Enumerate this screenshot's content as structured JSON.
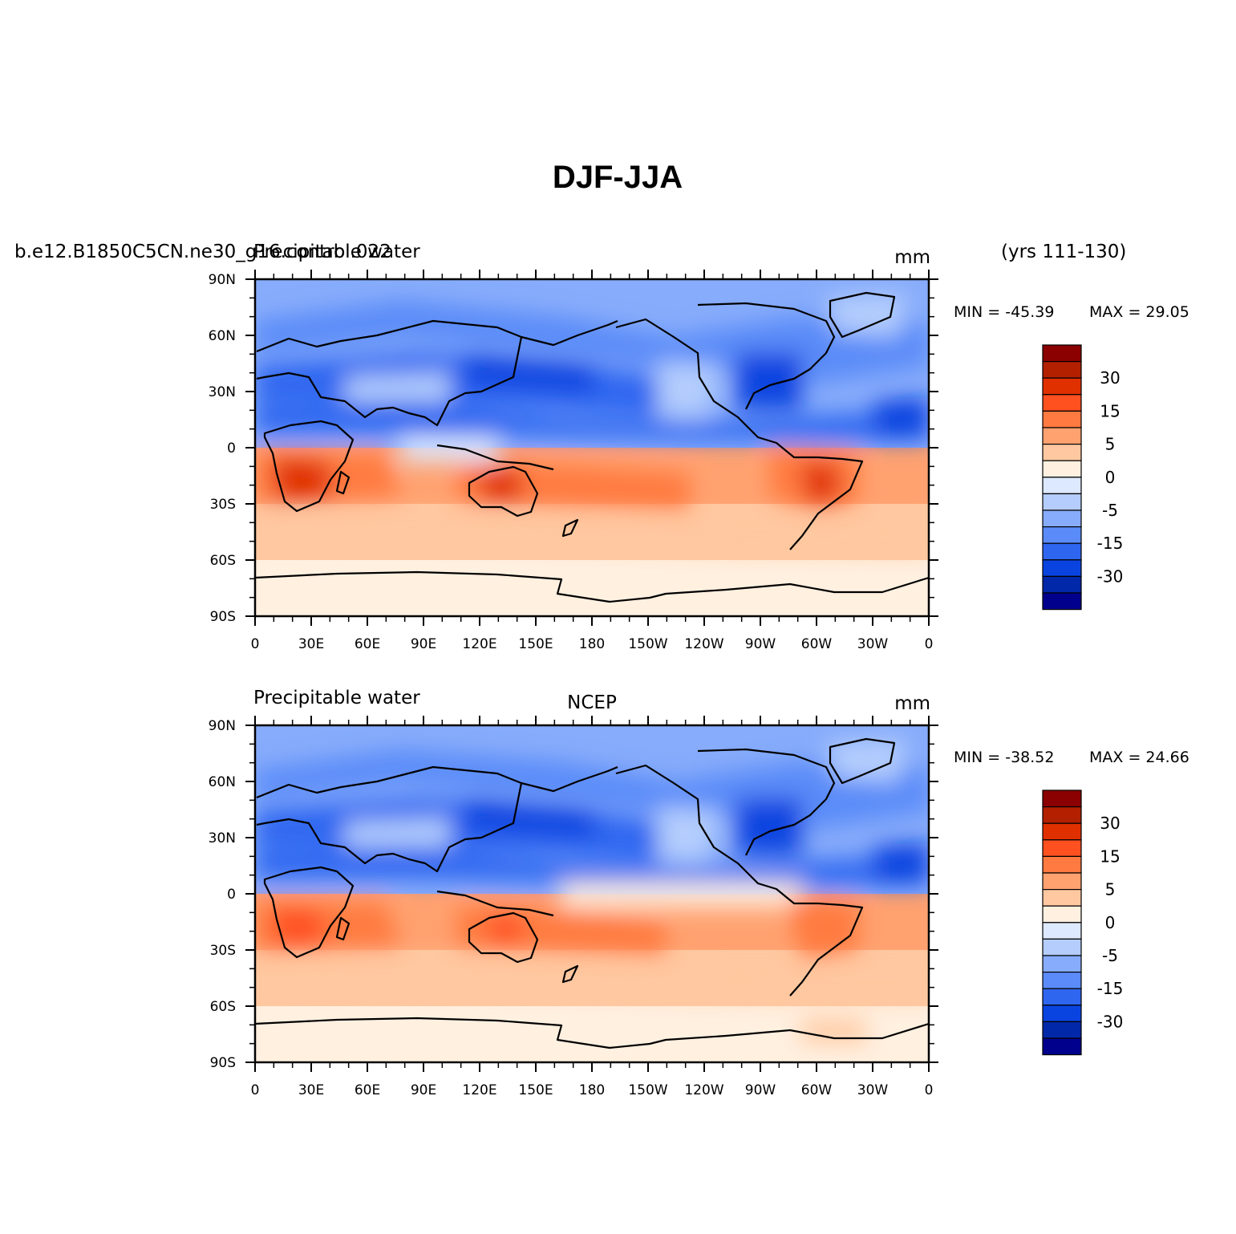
{
  "title": "DJF-JJA",
  "panels": [
    {
      "left_label_1": "b.e12.B1850C5CN.ne30_g16.control.022",
      "left_label_2": "Precipitable water",
      "center_label": "",
      "units": "mm",
      "right_label": "(yrs 111-130)",
      "min_label": "MIN = -45.39",
      "max_label": "MAX =   29.05"
    },
    {
      "left_label_1": "Precipitable water",
      "left_label_2": "",
      "center_label": "NCEP",
      "units": "mm",
      "right_label": "",
      "min_label": "MIN = -38.52",
      "max_label": "MAX =   24.66"
    }
  ],
  "lat_labels": [
    "90N",
    "60N",
    "30N",
    "0",
    "30S",
    "60S",
    "90S"
  ],
  "lon_labels": [
    "0",
    "30E",
    "60E",
    "90E",
    "120E",
    "150E",
    "180",
    "150W",
    "120W",
    "90W",
    "60W",
    "30W",
    "0"
  ],
  "colorbar": {
    "colors": [
      "#8b0000",
      "#b22000",
      "#e03000",
      "#ff5020",
      "#ff7a40",
      "#ffa270",
      "#ffc8a0",
      "#fff0e0",
      "#dde9ff",
      "#b4cdfd",
      "#87acfb",
      "#5a8bf8",
      "#2f66f0",
      "#0a44e0",
      "#0028a8",
      "#00008c"
    ],
    "labels": [
      "30",
      "15",
      "5",
      "0",
      "-5",
      "-15",
      "-30"
    ]
  }
}
